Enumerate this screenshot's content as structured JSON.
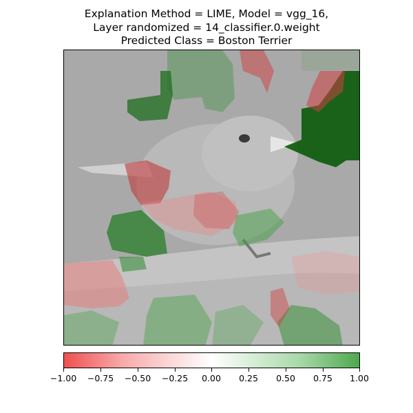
{
  "title": {
    "line1": "Explanation Method = LIME, Model = vgg_16,",
    "line2": "Layer randomized = 14_classifier.0.weight",
    "line3": "Predicted Class = Boston Terrier"
  },
  "colorbar": {
    "min": -1.0,
    "max": 1.0,
    "ticks": [
      "−1.00",
      "−0.75",
      "−0.50",
      "−0.25",
      "0.00",
      "0.25",
      "0.50",
      "0.75",
      "1.00"
    ],
    "colors": {
      "negative": "#f05050",
      "neutral": "#ffffff",
      "positive": "#4ea84e"
    }
  },
  "image": {
    "subject": "bird-on-branch",
    "overlay": "lime-superpixel-heatmap"
  }
}
